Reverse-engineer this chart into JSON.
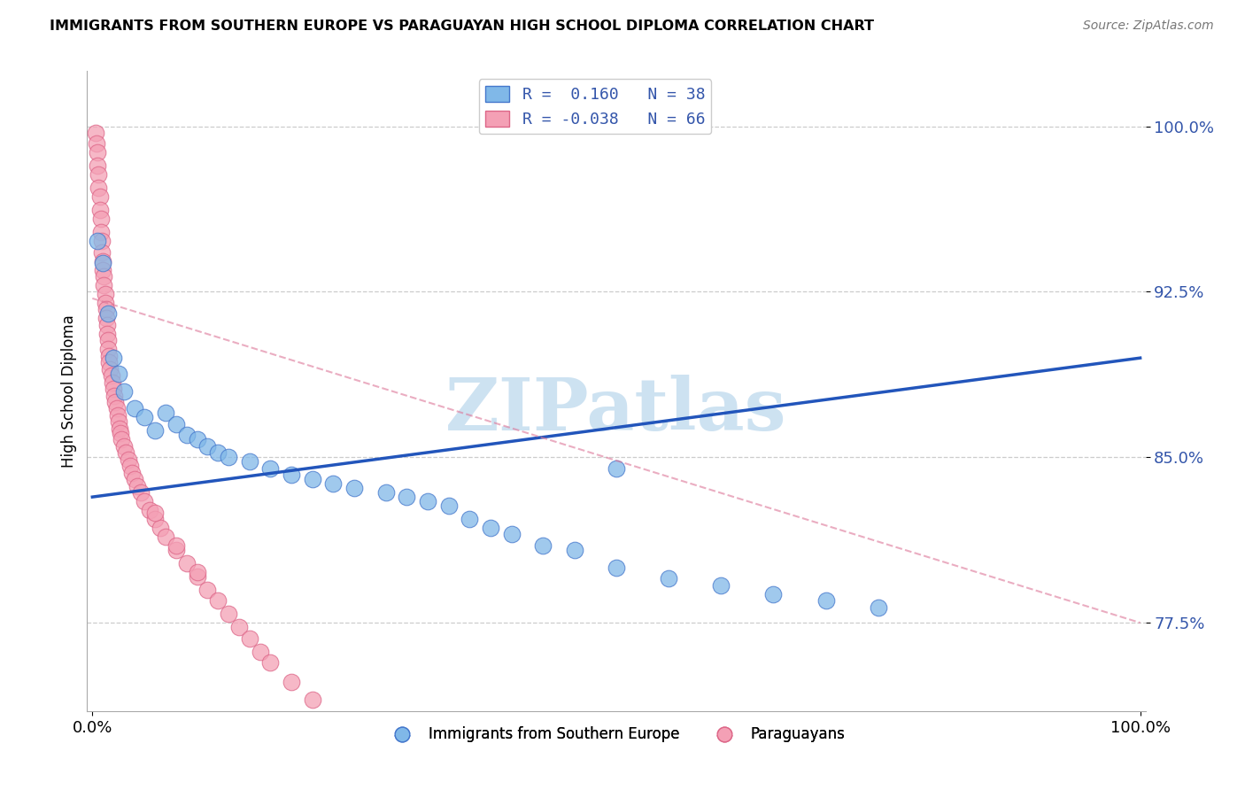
{
  "title": "IMMIGRANTS FROM SOUTHERN EUROPE VS PARAGUAYAN HIGH SCHOOL DIPLOMA CORRELATION CHART",
  "source": "Source: ZipAtlas.com",
  "ylabel": "High School Diploma",
  "ytick_vals": [
    0.775,
    0.85,
    0.925,
    1.0
  ],
  "ytick_labels": [
    "77.5%",
    "85.0%",
    "92.5%",
    "100.0%"
  ],
  "ylim": [
    0.735,
    1.025
  ],
  "xlim": [
    -0.005,
    1.005
  ],
  "xtick_vals": [
    0.0,
    1.0
  ],
  "xtick_labels": [
    "0.0%",
    "100.0%"
  ],
  "legend_label_blue": "R =  0.160   N = 38",
  "legend_label_pink": "R = -0.038   N = 66",
  "bottom_legend_blue": "Immigrants from Southern Europe",
  "bottom_legend_pink": "Paraguayans",
  "blue_color": "#80b8e8",
  "pink_color": "#f4a0b5",
  "blue_edge_color": "#4477cc",
  "pink_edge_color": "#dd6688",
  "blue_line_color": "#2255bb",
  "pink_line_color": "#dd7799",
  "text_color": "#3355aa",
  "watermark_color": "#c8dff0",
  "blue_trend_x": [
    0.0,
    1.0
  ],
  "blue_trend_y": [
    0.832,
    0.895
  ],
  "pink_trend_x": [
    0.0,
    1.0
  ],
  "pink_trend_y": [
    0.922,
    0.775
  ],
  "blue_x": [
    0.005,
    0.01,
    0.015,
    0.02,
    0.025,
    0.03,
    0.04,
    0.05,
    0.06,
    0.07,
    0.08,
    0.09,
    0.1,
    0.11,
    0.12,
    0.13,
    0.15,
    0.17,
    0.19,
    0.21,
    0.23,
    0.25,
    0.28,
    0.3,
    0.32,
    0.34,
    0.36,
    0.38,
    0.4,
    0.43,
    0.46,
    0.5,
    0.55,
    0.6,
    0.65,
    0.7,
    0.75,
    0.5
  ],
  "blue_y": [
    0.948,
    0.938,
    0.915,
    0.895,
    0.888,
    0.88,
    0.872,
    0.868,
    0.862,
    0.87,
    0.865,
    0.86,
    0.858,
    0.855,
    0.852,
    0.85,
    0.848,
    0.845,
    0.842,
    0.84,
    0.838,
    0.836,
    0.834,
    0.832,
    0.83,
    0.828,
    0.822,
    0.818,
    0.815,
    0.81,
    0.808,
    0.8,
    0.795,
    0.792,
    0.788,
    0.785,
    0.782,
    0.845
  ],
  "pink_x": [
    0.003,
    0.004,
    0.005,
    0.005,
    0.006,
    0.006,
    0.007,
    0.007,
    0.008,
    0.008,
    0.009,
    0.009,
    0.01,
    0.01,
    0.011,
    0.011,
    0.012,
    0.012,
    0.013,
    0.013,
    0.014,
    0.014,
    0.015,
    0.015,
    0.016,
    0.016,
    0.017,
    0.018,
    0.019,
    0.02,
    0.021,
    0.022,
    0.023,
    0.024,
    0.025,
    0.026,
    0.027,
    0.028,
    0.03,
    0.032,
    0.034,
    0.036,
    0.038,
    0.04,
    0.043,
    0.046,
    0.05,
    0.055,
    0.06,
    0.065,
    0.07,
    0.08,
    0.09,
    0.1,
    0.11,
    0.12,
    0.13,
    0.14,
    0.15,
    0.16,
    0.17,
    0.19,
    0.21,
    0.06,
    0.08,
    0.1
  ],
  "pink_y": [
    0.997,
    0.992,
    0.988,
    0.982,
    0.978,
    0.972,
    0.968,
    0.962,
    0.958,
    0.952,
    0.948,
    0.943,
    0.939,
    0.935,
    0.932,
    0.928,
    0.924,
    0.92,
    0.917,
    0.913,
    0.91,
    0.906,
    0.903,
    0.899,
    0.896,
    0.893,
    0.89,
    0.887,
    0.884,
    0.881,
    0.878,
    0.875,
    0.872,
    0.869,
    0.866,
    0.863,
    0.861,
    0.858,
    0.855,
    0.852,
    0.849,
    0.846,
    0.843,
    0.84,
    0.837,
    0.834,
    0.83,
    0.826,
    0.822,
    0.818,
    0.814,
    0.808,
    0.802,
    0.796,
    0.79,
    0.785,
    0.779,
    0.773,
    0.768,
    0.762,
    0.757,
    0.748,
    0.74,
    0.825,
    0.81,
    0.798
  ]
}
